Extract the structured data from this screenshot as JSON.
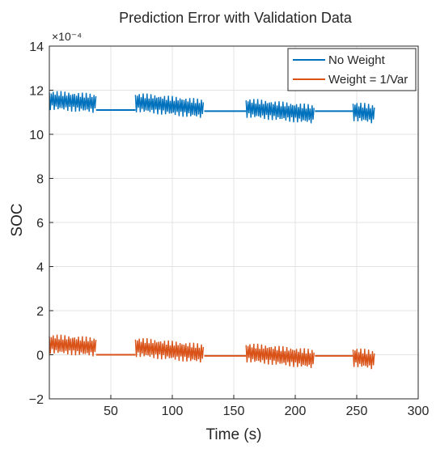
{
  "chart_data": {
    "type": "line",
    "title": "Prediction Error with Validation Data",
    "xlabel": "Time (s)",
    "ylabel": "SOC",
    "y_exponent_label": "×10⁻⁴",
    "y_scale_factor": 0.0001,
    "xlim": [
      0,
      300
    ],
    "ylim": [
      -2,
      14
    ],
    "xticks": [
      50,
      100,
      150,
      200,
      250,
      300
    ],
    "yticks": [
      -2,
      0,
      2,
      4,
      6,
      8,
      10,
      12,
      14
    ],
    "grid": true,
    "legend_position": "top-right",
    "series": [
      {
        "name": "No Weight",
        "color": "#0072BD",
        "segments": [
          {
            "x_start": 0,
            "x_end": 38,
            "y_start": 11.55,
            "y_end": 11.4,
            "noise": 0.45
          },
          {
            "x_start": 38,
            "x_end": 70,
            "y_start": 11.1,
            "y_end": 11.1,
            "noise": 0
          },
          {
            "x_start": 70,
            "x_end": 126,
            "y_start": 11.45,
            "y_end": 11.15,
            "noise": 0.45
          },
          {
            "x_start": 126,
            "x_end": 160,
            "y_start": 11.05,
            "y_end": 11.05,
            "noise": 0
          },
          {
            "x_start": 160,
            "x_end": 216,
            "y_start": 11.2,
            "y_end": 10.9,
            "noise": 0.45
          },
          {
            "x_start": 216,
            "x_end": 247,
            "y_start": 11.05,
            "y_end": 11.05,
            "noise": 0
          },
          {
            "x_start": 247,
            "x_end": 265,
            "y_start": 11.05,
            "y_end": 10.9,
            "noise": 0.45
          }
        ]
      },
      {
        "name": "Weight = 1/Var",
        "color": "#D95319",
        "segments": [
          {
            "x_start": 0,
            "x_end": 38,
            "y_start": 0.5,
            "y_end": 0.35,
            "noise": 0.45
          },
          {
            "x_start": 38,
            "x_end": 70,
            "y_start": 0.0,
            "y_end": 0.0,
            "noise": 0
          },
          {
            "x_start": 70,
            "x_end": 126,
            "y_start": 0.35,
            "y_end": 0.05,
            "noise": 0.45
          },
          {
            "x_start": 126,
            "x_end": 160,
            "y_start": -0.05,
            "y_end": -0.05,
            "noise": 0
          },
          {
            "x_start": 160,
            "x_end": 216,
            "y_start": 0.1,
            "y_end": -0.2,
            "noise": 0.45
          },
          {
            "x_start": 216,
            "x_end": 247,
            "y_start": -0.05,
            "y_end": -0.05,
            "noise": 0
          },
          {
            "x_start": 247,
            "x_end": 265,
            "y_start": -0.1,
            "y_end": -0.25,
            "noise": 0.45
          }
        ]
      }
    ]
  }
}
